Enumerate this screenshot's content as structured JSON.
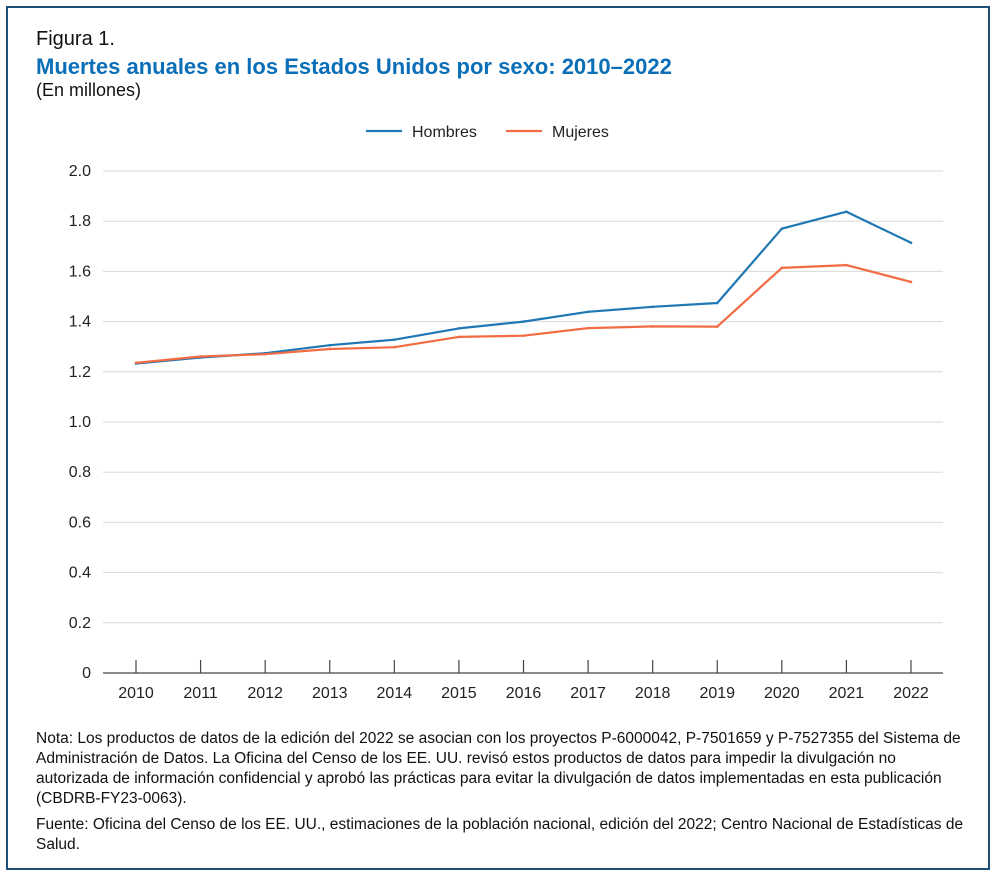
{
  "header": {
    "figure_label": "Figura 1.",
    "title": "Muertes anuales en los Estados Unidos por sexo: 2010–2022",
    "subtitle": "(En millones)"
  },
  "colors": {
    "hombres": "#1f77b4",
    "mujeres": "#f26b43",
    "title": "#0b6fb8",
    "grid": "#d9d9d9",
    "border": "#1f4e79"
  },
  "chart_data": {
    "type": "line",
    "x": [
      2010,
      2011,
      2012,
      2013,
      2014,
      2015,
      2016,
      2017,
      2018,
      2019,
      2020,
      2021,
      2022
    ],
    "series": [
      {
        "name": "Hombres",
        "color": "#1f77b4",
        "values": [
          1.233,
          1.257,
          1.274,
          1.306,
          1.328,
          1.373,
          1.4,
          1.439,
          1.459,
          1.474,
          1.77,
          1.838,
          1.714
        ]
      },
      {
        "name": "Mujeres",
        "color": "#f26b43",
        "values": [
          1.236,
          1.261,
          1.27,
          1.291,
          1.298,
          1.339,
          1.344,
          1.374,
          1.381,
          1.38,
          1.614,
          1.625,
          1.558
        ]
      }
    ],
    "title": "Muertes anuales en los Estados Unidos por sexo: 2010–2022",
    "ylabel": "(En millones)",
    "ylim": [
      0,
      2.0
    ],
    "yticks": [
      0,
      0.2,
      0.4,
      0.6,
      0.8,
      1.0,
      1.2,
      1.4,
      1.6,
      1.8,
      2.0
    ],
    "ytick_labels": [
      "0",
      "0.2",
      "0.4",
      "0.6",
      "0.8",
      "1.0",
      "1.2",
      "1.4",
      "1.6",
      "1.8",
      "2.0"
    ],
    "xtick_labels": [
      "2010",
      "2011",
      "2012",
      "2013",
      "2014",
      "2015",
      "2016",
      "2017",
      "2018",
      "2019",
      "2020",
      "2021",
      "2022"
    ],
    "grid": true,
    "legend": "top-center"
  },
  "notes": {
    "nota": "Nota: Los productos de datos de la edición del 2022 se asocian con los proyectos P-6000042, P-7501659 y P-7527355 del Sistema de Administración de Datos. La Oficina del Censo de los EE. UU. revisó estos productos de datos para impedir la divulgación no autorizada de información confidencial y aprobó las prácticas para evitar la divulgación de datos implementadas en esta publicación (CBDRB-FY23-0063).",
    "fuente": "Fuente: Oficina del Censo de los EE. UU., estimaciones de la población nacional, edición del 2022; Centro Nacional de Estadísticas de Salud."
  }
}
